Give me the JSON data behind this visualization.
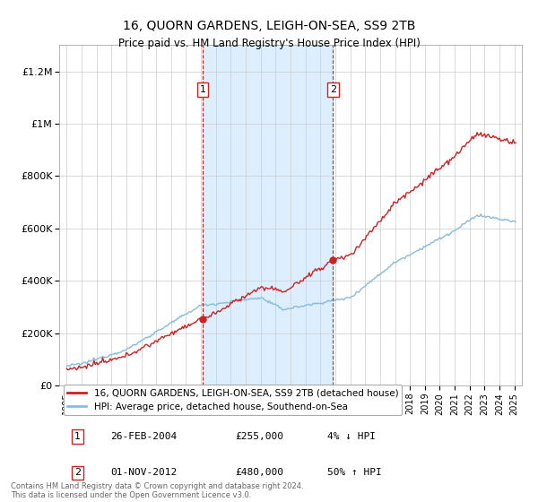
{
  "title": "16, QUORN GARDENS, LEIGH-ON-SEA, SS9 2TB",
  "subtitle": "Price paid vs. HM Land Registry's House Price Index (HPI)",
  "legend_line1": "16, QUORN GARDENS, LEIGH-ON-SEA, SS9 2TB (detached house)",
  "legend_line2": "HPI: Average price, detached house, Southend-on-Sea",
  "sale1_date": "26-FEB-2004",
  "sale1_price": "£255,000",
  "sale1_hpi": "4% ↓ HPI",
  "sale1_x": 2004.12,
  "sale1_y": 255000,
  "sale2_date": "01-NOV-2012",
  "sale2_price": "£480,000",
  "sale2_hpi": "50% ↑ HPI",
  "sale2_x": 2012.84,
  "sale2_y": 480000,
  "hpi_color": "#88bbdd",
  "price_color": "#cc2222",
  "background_color": "#ffffff",
  "shaded_region_color": "#ddeeff",
  "footer": "Contains HM Land Registry data © Crown copyright and database right 2024.\nThis data is licensed under the Open Government Licence v3.0.",
  "ylim": [
    0,
    1300000
  ],
  "xlim_start": 1994.5,
  "xlim_end": 2025.5,
  "yticks": [
    0,
    200000,
    400000,
    600000,
    800000,
    1000000,
    1200000
  ],
  "ytick_labels": [
    "£0",
    "£200K",
    "£400K",
    "£600K",
    "£800K",
    "£1M",
    "£1.2M"
  ]
}
